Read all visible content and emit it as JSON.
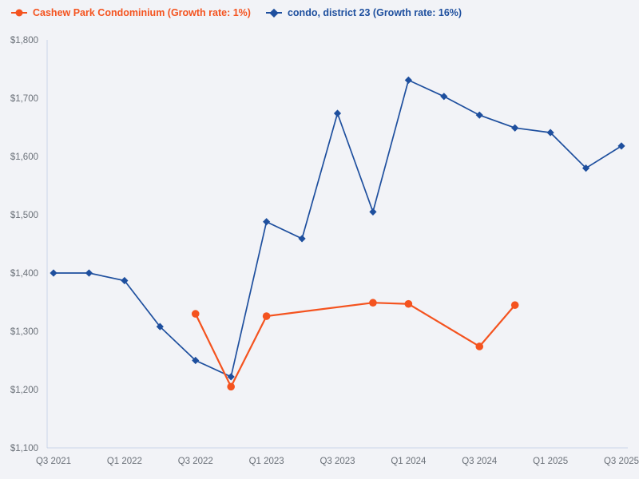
{
  "chart_data": {
    "type": "line",
    "title": "",
    "xlabel": "",
    "ylabel": "",
    "grid": false,
    "legend_position": "top-left",
    "background": "#f2f3f7",
    "axis_color": "#c9d4e8",
    "tick_label_color": "#6a7078",
    "ylim": [
      1100,
      1800
    ],
    "y_tick_step": 100,
    "y_tick_prefix": "$",
    "y_tick_labels": [
      "$1,100",
      "$1,200",
      "$1,300",
      "$1,400",
      "$1,500",
      "$1,600",
      "$1,700",
      "$1,800"
    ],
    "x_tick_every": 2,
    "x_tick_labels": [
      "Q3 2021",
      "Q1 2022",
      "Q3 2022",
      "Q1 2023",
      "Q3 2023",
      "Q1 2024",
      "Q3 2024",
      "Q1 2025",
      "Q3 2025"
    ],
    "categories": [
      "Q3 2021",
      "Q4 2021",
      "Q1 2022",
      "Q2 2022",
      "Q3 2022",
      "Q4 2022",
      "Q1 2023",
      "Q2 2023",
      "Q3 2023",
      "Q4 2023",
      "Q1 2024",
      "Q2 2024",
      "Q3 2024",
      "Q4 2024",
      "Q1 2025",
      "Q2 2025",
      "Q3 2025"
    ],
    "series": [
      {
        "name": "Cashew Park Condominium (Growth rate: 1%)",
        "color": "#f4531f",
        "marker": "circle",
        "line_width": 2.2,
        "values": [
          null,
          null,
          null,
          null,
          1330,
          1205,
          1326,
          null,
          null,
          1349,
          1347,
          null,
          1274,
          1345,
          null,
          null,
          null
        ]
      },
      {
        "name": "condo, district 23 (Growth rate: 16%)",
        "color": "#1e4f9e",
        "marker": "diamond",
        "line_width": 1.7,
        "values": [
          1400,
          1400,
          1387,
          1308,
          1250,
          1222,
          1488,
          1459,
          1674,
          1505,
          1731,
          1703,
          1671,
          1649,
          1641,
          1580,
          1618
        ]
      }
    ]
  }
}
